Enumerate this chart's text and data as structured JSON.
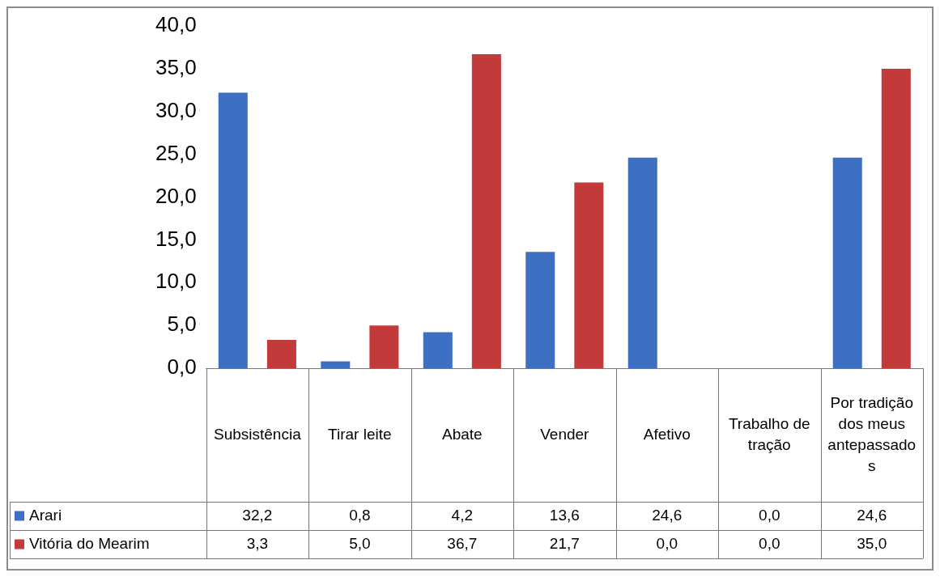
{
  "chart_data": {
    "type": "bar",
    "categories": [
      "Subsistência",
      "Tirar leite",
      "Abate",
      "Vender",
      "Afetivo",
      "Trabalho de tração",
      "Por tradição dos meus antepassados"
    ],
    "series": [
      {
        "name": "Arari",
        "color": "#3d6fc2",
        "values": [
          32.2,
          0.8,
          4.2,
          13.6,
          24.6,
          0.0,
          24.6
        ],
        "value_labels": [
          "32,2",
          "0,8",
          "4,2",
          "13,6",
          "24,6",
          "0,0",
          "24,6"
        ]
      },
      {
        "name": "Vitória do Mearim",
        "color": "#c23a3a",
        "values": [
          3.3,
          5.0,
          36.7,
          21.7,
          0.0,
          0.0,
          35.0
        ],
        "value_labels": [
          "3,3",
          "5,0",
          "36,7",
          "21,7",
          "0,0",
          "0,0",
          "35,0"
        ]
      }
    ],
    "ylim": [
      0,
      40
    ],
    "yticks": [
      {
        "value": 0,
        "label": "0,0"
      },
      {
        "value": 5,
        "label": "5,0"
      },
      {
        "value": 10,
        "label": "10,0"
      },
      {
        "value": 15,
        "label": "15,0"
      },
      {
        "value": 20,
        "label": "20,0"
      },
      {
        "value": 25,
        "label": "25,0"
      },
      {
        "value": 30,
        "label": "30,0"
      },
      {
        "value": 35,
        "label": "35,0"
      },
      {
        "value": 40,
        "label": "40,0"
      }
    ],
    "grid": false,
    "legend": "bottom left"
  }
}
